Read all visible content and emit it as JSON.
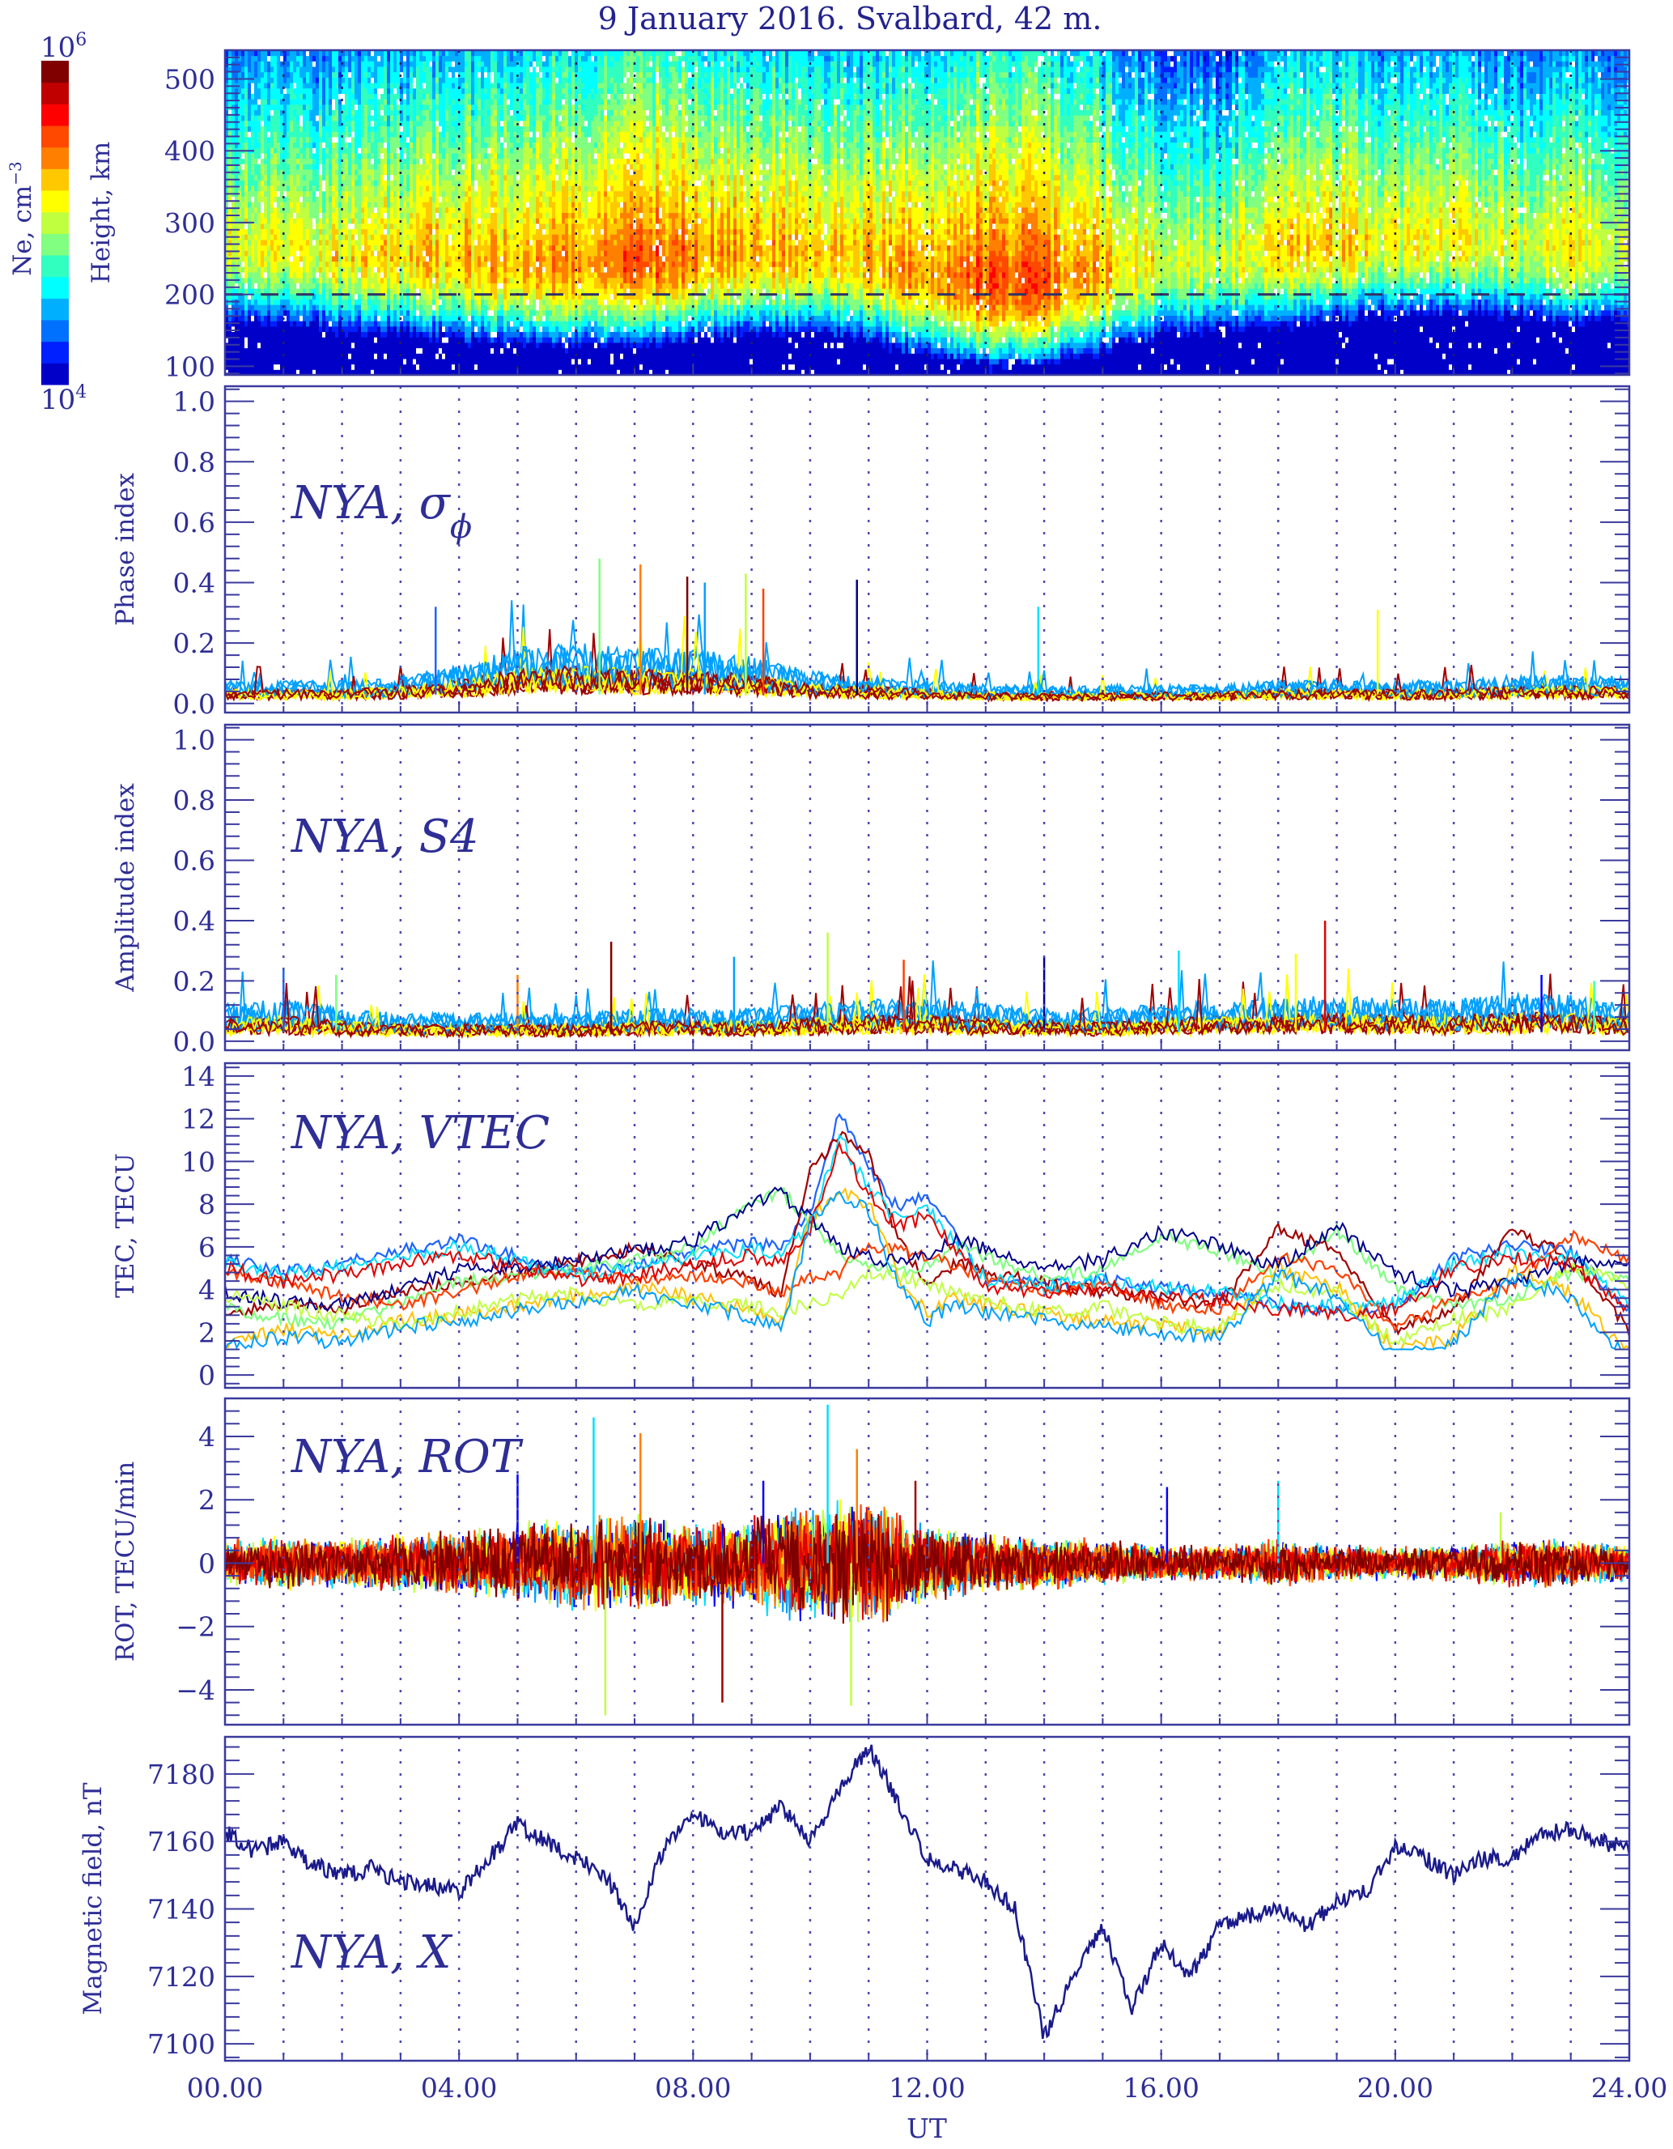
{
  "figure": {
    "title": "9 January 2016. Svalbard, 42 m.",
    "xlabel": "UT",
    "x_ticks": [
      "00.00",
      "04.00",
      "08.00",
      "12.00",
      "16.00",
      "20.00",
      "24.00"
    ],
    "x_range_hours": [
      0,
      24
    ],
    "colorbar": {
      "label": "Ne, cm",
      "label_sup": "−3",
      "top_label": "10",
      "top_exp": "6",
      "bottom_label": "10",
      "bottom_exp": "4",
      "colors": [
        "#0000c8",
        "#0020ff",
        "#0070ff",
        "#00b0ff",
        "#00ffff",
        "#30ffc0",
        "#80ff80",
        "#c0ff40",
        "#ffff00",
        "#ffc800",
        "#ff8000",
        "#ff4800",
        "#ff0000",
        "#c00000",
        "#800000"
      ]
    },
    "series_colors": [
      "#00008c",
      "#0000ff",
      "#1e64ff",
      "#00a0ff",
      "#00e0ff",
      "#40ffc0",
      "#80ff80",
      "#c0ff40",
      "#ffff00",
      "#ffc000",
      "#ff8000",
      "#ff4000",
      "#e00000",
      "#a00000",
      "#800000"
    ]
  },
  "chart_data": [
    {
      "id": "ne",
      "type": "heatmap",
      "title": "9 January 2016. Svalbard, 42 m.",
      "ylabel": "Height, km",
      "ylim": [
        88,
        540
      ],
      "y_ticks": [
        "100",
        "200",
        "300",
        "400",
        "500"
      ],
      "y_tick_values": [
        100,
        200,
        300,
        400,
        500
      ],
      "reference_line_km": 200,
      "color_scale": "log Ne 1e4 to 1e6 cm^-3",
      "peak_height_km": [
        270,
        270,
        260,
        260,
        255,
        250,
        250,
        255,
        260,
        265,
        265,
        255,
        235,
        225,
        225,
        240,
        250,
        255,
        270,
        280,
        280,
        285,
        275,
        270,
        270
      ],
      "peak_log_ne": [
        5.1,
        5.1,
        5.15,
        5.2,
        5.3,
        5.35,
        5.4,
        5.5,
        5.45,
        5.35,
        5.25,
        5.3,
        5.45,
        5.55,
        5.5,
        5.3,
        5.1,
        5.0,
        5.2,
        5.25,
        5.1,
        5.15,
        5.05,
        5.15,
        5.1
      ],
      "hours": [
        0,
        1,
        2,
        3,
        4,
        5,
        6,
        7,
        8,
        9,
        10,
        11,
        12,
        13,
        14,
        15,
        16,
        17,
        18,
        19,
        20,
        21,
        22,
        23,
        24
      ]
    },
    {
      "id": "phase",
      "type": "line",
      "ylabel": "Phase index",
      "label": "NYA, σ",
      "label_sub": "ϕ",
      "ylim": [
        -0.03,
        1.05
      ],
      "y_ticks": [
        "0.0",
        "0.2",
        "0.4",
        "0.6",
        "0.8",
        "1.0"
      ],
      "y_tick_values": [
        0,
        0.2,
        0.4,
        0.6,
        0.8,
        1.0
      ],
      "envelope_hours": [
        0,
        1,
        2,
        3,
        4,
        5,
        6,
        7,
        8,
        9,
        10,
        11,
        12,
        13,
        14,
        15,
        16,
        17,
        18,
        19,
        20,
        21,
        22,
        23,
        24
      ],
      "envelope_base": [
        0.05,
        0.05,
        0.05,
        0.06,
        0.08,
        0.12,
        0.13,
        0.12,
        0.12,
        0.1,
        0.07,
        0.06,
        0.05,
        0.04,
        0.04,
        0.04,
        0.04,
        0.04,
        0.05,
        0.05,
        0.05,
        0.05,
        0.06,
        0.06,
        0.06
      ],
      "spikes": [
        [
          3.6,
          0.32
        ],
        [
          6.4,
          0.48
        ],
        [
          7.1,
          0.46
        ],
        [
          7.9,
          0.42
        ],
        [
          8.2,
          0.4
        ],
        [
          8.9,
          0.43
        ],
        [
          9.2,
          0.38
        ],
        [
          10.8,
          0.41
        ],
        [
          13.9,
          0.32
        ],
        [
          19.7,
          0.31
        ]
      ]
    },
    {
      "id": "amplitude",
      "type": "line",
      "ylabel": "Amplitude index",
      "label": "NYA, S4",
      "ylim": [
        -0.03,
        1.05
      ],
      "y_ticks": [
        "0.0",
        "0.2",
        "0.4",
        "0.6",
        "0.8",
        "1.0"
      ],
      "y_tick_values": [
        0,
        0.2,
        0.4,
        0.6,
        0.8,
        1.0
      ],
      "envelope_hours": [
        0,
        1,
        2,
        3,
        4,
        5,
        6,
        7,
        8,
        9,
        10,
        11,
        12,
        13,
        14,
        15,
        16,
        17,
        18,
        19,
        20,
        21,
        22,
        23,
        24
      ],
      "envelope_base": [
        0.08,
        0.09,
        0.07,
        0.06,
        0.06,
        0.06,
        0.06,
        0.07,
        0.07,
        0.07,
        0.08,
        0.09,
        0.09,
        0.08,
        0.07,
        0.07,
        0.08,
        0.09,
        0.09,
        0.1,
        0.09,
        0.09,
        0.1,
        0.1,
        0.08
      ],
      "spikes": [
        [
          1.0,
          0.24
        ],
        [
          1.9,
          0.22
        ],
        [
          5.0,
          0.22
        ],
        [
          6.6,
          0.33
        ],
        [
          8.7,
          0.28
        ],
        [
          10.3,
          0.36
        ],
        [
          11.6,
          0.27
        ],
        [
          14.0,
          0.28
        ],
        [
          16.3,
          0.3
        ],
        [
          18.3,
          0.29
        ],
        [
          18.8,
          0.4
        ],
        [
          22.5,
          0.22
        ],
        [
          23.4,
          0.2
        ]
      ]
    },
    {
      "id": "vtec",
      "type": "line",
      "ylabel": "TEC, TECU",
      "label": "NYA, VTEC",
      "ylim": [
        -0.6,
        14.6
      ],
      "y_ticks": [
        "0",
        "2",
        "4",
        "6",
        "8",
        "10",
        "12",
        "14"
      ],
      "y_tick_values": [
        0,
        2,
        4,
        6,
        8,
        10,
        12,
        14
      ],
      "series_hours": [
        0,
        1,
        2,
        3,
        4,
        5,
        6,
        7,
        8,
        9,
        9.5,
        10,
        10.5,
        11,
        11.5,
        12,
        12.5,
        13,
        14,
        15,
        16,
        17,
        18,
        19,
        20,
        21,
        22,
        23,
        24
      ],
      "series": [
        {
          "name": "sat-1",
          "values": [
            5.5,
            4.8,
            5.2,
            5.8,
            6.3,
            5.6,
            4.8,
            5.1,
            5.8,
            6.2,
            6.0,
            7.6,
            12.4,
            9.6,
            7.8,
            8.4,
            6.4,
            4.6,
            4.2,
            4.5,
            4.1,
            3.8,
            3.3,
            3.0,
            3.2,
            5.5,
            6.1,
            5.8,
            3.0
          ]
        },
        {
          "name": "sat-2",
          "values": [
            2.8,
            3.4,
            3.1,
            3.9,
            4.3,
            4.8,
            5.3,
            5.9,
            5.2,
            4.5,
            3.8,
            9.6,
            11.2,
            10.4,
            6.4,
            4.3,
            5.2,
            4.8,
            4.3,
            3.9,
            3.6,
            3.3,
            6.8,
            5.8,
            2.2,
            3.0,
            6.8,
            5.5,
            2.1
          ]
        },
        {
          "name": "sat-3",
          "values": [
            3.2,
            2.6,
            2.4,
            3.4,
            4.4,
            4.6,
            4.9,
            5.4,
            5.9,
            8.1,
            8.6,
            7.2,
            5.6,
            5.1,
            4.8,
            5.2,
            6.1,
            5.5,
            4.6,
            4.9,
            6.5,
            5.8,
            4.6,
            6.8,
            4.2,
            3.2,
            3.6,
            4.8,
            4.5
          ]
        },
        {
          "name": "sat-4",
          "values": [
            4.9,
            4.3,
            3.7,
            3.3,
            3.9,
            4.7,
            4.9,
            4.4,
            4.6,
            4.3,
            3.9,
            4.5,
            4.8,
            6.1,
            5.8,
            5.6,
            5.0,
            4.6,
            3.9,
            4.2,
            3.3,
            3.0,
            5.5,
            4.9,
            2.3,
            3.5,
            4.2,
            6.5,
            5.4
          ]
        }
      ]
    },
    {
      "id": "rot",
      "type": "line",
      "ylabel": "ROT, TECU/min",
      "label": "NYA, ROT",
      "ylim": [
        -5.1,
        5.2
      ],
      "y_ticks": [
        "−4",
        "−2",
        "0",
        "2",
        "4"
      ],
      "y_tick_values": [
        -4,
        -2,
        0,
        2,
        4
      ],
      "envelope_hours": [
        0,
        1,
        2,
        3,
        4,
        5,
        6,
        7,
        8,
        9,
        10,
        11,
        12,
        13,
        14,
        15,
        16,
        17,
        18,
        19,
        20,
        21,
        22,
        23,
        24
      ],
      "envelope_amp": [
        0.8,
        0.9,
        0.8,
        1.0,
        1.1,
        1.3,
        1.6,
        1.6,
        1.4,
        1.6,
        2.0,
        2.2,
        1.3,
        1.0,
        0.9,
        0.8,
        0.6,
        0.6,
        0.8,
        0.6,
        0.6,
        0.6,
        0.8,
        0.8,
        0.6
      ],
      "spikes": [
        [
          5.0,
          2.8
        ],
        [
          6.3,
          4.6
        ],
        [
          6.5,
          -4.8
        ],
        [
          7.1,
          4.1
        ],
        [
          8.5,
          -4.4
        ],
        [
          9.2,
          2.6
        ],
        [
          10.3,
          5.0
        ],
        [
          10.7,
          -4.5
        ],
        [
          10.8,
          3.6
        ],
        [
          11.8,
          2.6
        ],
        [
          16.1,
          2.4
        ],
        [
          18.0,
          2.6
        ],
        [
          21.8,
          1.6
        ]
      ]
    },
    {
      "id": "magnetic",
      "type": "line",
      "ylabel": "Magnetic field, nT",
      "label": "NYA, X",
      "ylim": [
        7095,
        7191
      ],
      "y_ticks": [
        "7100",
        "7120",
        "7140",
        "7160",
        "7180"
      ],
      "y_tick_values": [
        7100,
        7120,
        7140,
        7160,
        7180
      ],
      "hours": [
        0,
        0.5,
        1,
        1.5,
        2,
        2.5,
        3,
        3.5,
        4,
        4.5,
        5,
        5.5,
        6,
        6.5,
        7,
        7.5,
        8,
        8.5,
        9,
        9.5,
        10,
        10.5,
        11,
        11.5,
        12,
        12.5,
        13,
        13.5,
        14,
        14.5,
        15,
        15.5,
        16,
        16.5,
        17,
        17.5,
        18,
        18.5,
        19,
        19.5,
        20,
        20.5,
        21,
        21.5,
        22,
        22.5,
        23,
        23.5,
        24
      ],
      "values": [
        7163,
        7157,
        7160,
        7153,
        7150,
        7152,
        7148,
        7147,
        7145,
        7155,
        7165,
        7160,
        7155,
        7150,
        7135,
        7158,
        7168,
        7162,
        7163,
        7170,
        7160,
        7175,
        7188,
        7172,
        7155,
        7152,
        7148,
        7140,
        7102,
        7120,
        7135,
        7110,
        7130,
        7120,
        7135,
        7138,
        7140,
        7135,
        7142,
        7145,
        7158,
        7155,
        7150,
        7155,
        7155,
        7162,
        7164,
        7160,
        7158
      ]
    }
  ]
}
